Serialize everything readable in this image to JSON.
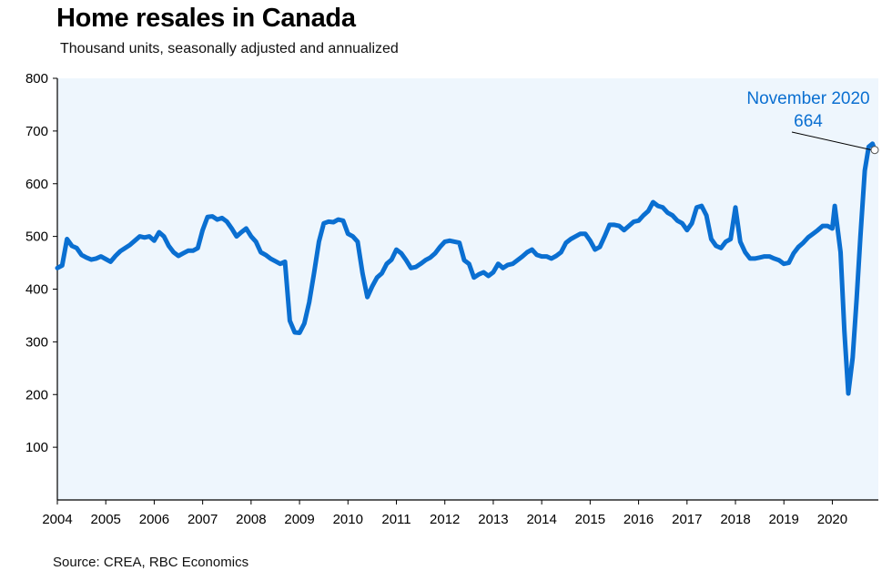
{
  "title": "Home resales in Canada",
  "subtitle": "Thousand units, seasonally adjusted and annualized",
  "source": "Source: CREA, RBC Economics",
  "colors": {
    "line": "#0a6fd1",
    "plot_bg": "#eef6fd",
    "annotation": "#0a6fd1"
  },
  "chart_data": {
    "type": "line",
    "title": "Home resales in Canada",
    "subtitle": "Thousand units, seasonally adjusted and annualized",
    "xlabel": "",
    "ylabel": "",
    "xlim": [
      2004,
      2020.95
    ],
    "ylim": [
      0,
      800
    ],
    "yticks": [
      "100",
      "200",
      "300",
      "400",
      "500",
      "600",
      "700",
      "800"
    ],
    "xticks": [
      "2004",
      "2005",
      "2006",
      "2007",
      "2008",
      "2009",
      "2010",
      "2011",
      "2012",
      "2013",
      "2014",
      "2015",
      "2016",
      "2017",
      "2018",
      "2019",
      "2020"
    ],
    "grid": false,
    "annotation": {
      "label": "November 2020",
      "value_label": "664",
      "x": 2020.875,
      "y": 664
    },
    "series": [
      {
        "points": [
          [
            2004.0,
            440
          ],
          [
            2004.1,
            445
          ],
          [
            2004.2,
            495
          ],
          [
            2004.3,
            482
          ],
          [
            2004.4,
            478
          ],
          [
            2004.5,
            465
          ],
          [
            2004.6,
            460
          ],
          [
            2004.7,
            456
          ],
          [
            2004.8,
            458
          ],
          [
            2004.9,
            462
          ],
          [
            2005.0,
            457
          ],
          [
            2005.1,
            452
          ],
          [
            2005.2,
            463
          ],
          [
            2005.3,
            472
          ],
          [
            2005.4,
            478
          ],
          [
            2005.5,
            484
          ],
          [
            2005.6,
            492
          ],
          [
            2005.7,
            500
          ],
          [
            2005.8,
            498
          ],
          [
            2005.9,
            500
          ],
          [
            2006.0,
            492
          ],
          [
            2006.1,
            508
          ],
          [
            2006.2,
            500
          ],
          [
            2006.3,
            482
          ],
          [
            2006.4,
            470
          ],
          [
            2006.5,
            463
          ],
          [
            2006.6,
            468
          ],
          [
            2006.7,
            473
          ],
          [
            2006.8,
            473
          ],
          [
            2006.9,
            478
          ],
          [
            2007.0,
            512
          ],
          [
            2007.1,
            537
          ],
          [
            2007.2,
            538
          ],
          [
            2007.3,
            532
          ],
          [
            2007.4,
            535
          ],
          [
            2007.5,
            528
          ],
          [
            2007.6,
            515
          ],
          [
            2007.7,
            500
          ],
          [
            2007.8,
            508
          ],
          [
            2007.9,
            515
          ],
          [
            2008.0,
            500
          ],
          [
            2008.1,
            490
          ],
          [
            2008.2,
            470
          ],
          [
            2008.3,
            465
          ],
          [
            2008.4,
            458
          ],
          [
            2008.5,
            453
          ],
          [
            2008.6,
            448
          ],
          [
            2008.7,
            452
          ],
          [
            2008.8,
            340
          ],
          [
            2008.9,
            318
          ],
          [
            2009.0,
            317
          ],
          [
            2009.1,
            335
          ],
          [
            2009.2,
            375
          ],
          [
            2009.3,
            430
          ],
          [
            2009.4,
            490
          ],
          [
            2009.5,
            525
          ],
          [
            2009.6,
            528
          ],
          [
            2009.7,
            527
          ],
          [
            2009.8,
            532
          ],
          [
            2009.9,
            530
          ],
          [
            2010.0,
            505
          ],
          [
            2010.1,
            500
          ],
          [
            2010.2,
            490
          ],
          [
            2010.3,
            430
          ],
          [
            2010.4,
            385
          ],
          [
            2010.5,
            405
          ],
          [
            2010.6,
            422
          ],
          [
            2010.7,
            430
          ],
          [
            2010.8,
            448
          ],
          [
            2010.9,
            456
          ],
          [
            2011.0,
            475
          ],
          [
            2011.1,
            468
          ],
          [
            2011.2,
            455
          ],
          [
            2011.3,
            440
          ],
          [
            2011.4,
            442
          ],
          [
            2011.5,
            448
          ],
          [
            2011.6,
            455
          ],
          [
            2011.7,
            460
          ],
          [
            2011.8,
            468
          ],
          [
            2011.9,
            480
          ],
          [
            2012.0,
            490
          ],
          [
            2012.1,
            492
          ],
          [
            2012.2,
            490
          ],
          [
            2012.3,
            488
          ],
          [
            2012.4,
            455
          ],
          [
            2012.5,
            448
          ],
          [
            2012.6,
            422
          ],
          [
            2012.7,
            428
          ],
          [
            2012.8,
            432
          ],
          [
            2012.9,
            425
          ],
          [
            2013.0,
            432
          ],
          [
            2013.1,
            448
          ],
          [
            2013.2,
            440
          ],
          [
            2013.3,
            446
          ],
          [
            2013.4,
            448
          ],
          [
            2013.5,
            455
          ],
          [
            2013.6,
            462
          ],
          [
            2013.7,
            470
          ],
          [
            2013.8,
            475
          ],
          [
            2013.9,
            465
          ],
          [
            2014.0,
            462
          ],
          [
            2014.1,
            462
          ],
          [
            2014.2,
            458
          ],
          [
            2014.3,
            463
          ],
          [
            2014.4,
            470
          ],
          [
            2014.5,
            488
          ],
          [
            2014.6,
            495
          ],
          [
            2014.7,
            500
          ],
          [
            2014.8,
            505
          ],
          [
            2014.9,
            505
          ],
          [
            2015.0,
            492
          ],
          [
            2015.1,
            475
          ],
          [
            2015.2,
            480
          ],
          [
            2015.3,
            500
          ],
          [
            2015.4,
            522
          ],
          [
            2015.5,
            522
          ],
          [
            2015.6,
            520
          ],
          [
            2015.7,
            512
          ],
          [
            2015.8,
            520
          ],
          [
            2015.9,
            528
          ],
          [
            2016.0,
            530
          ],
          [
            2016.1,
            540
          ],
          [
            2016.2,
            548
          ],
          [
            2016.3,
            565
          ],
          [
            2016.4,
            558
          ],
          [
            2016.5,
            555
          ],
          [
            2016.6,
            545
          ],
          [
            2016.7,
            540
          ],
          [
            2016.8,
            530
          ],
          [
            2016.9,
            525
          ],
          [
            2017.0,
            512
          ],
          [
            2017.1,
            525
          ],
          [
            2017.2,
            555
          ],
          [
            2017.3,
            558
          ],
          [
            2017.4,
            540
          ],
          [
            2017.5,
            495
          ],
          [
            2017.6,
            482
          ],
          [
            2017.7,
            478
          ],
          [
            2017.8,
            490
          ],
          [
            2017.9,
            495
          ],
          [
            2018.0,
            555
          ],
          [
            2018.1,
            490
          ],
          [
            2018.2,
            470
          ],
          [
            2018.3,
            458
          ],
          [
            2018.4,
            458
          ],
          [
            2018.5,
            460
          ],
          [
            2018.6,
            462
          ],
          [
            2018.7,
            462
          ],
          [
            2018.8,
            458
          ],
          [
            2018.9,
            455
          ],
          [
            2019.0,
            448
          ],
          [
            2019.1,
            450
          ],
          [
            2019.2,
            468
          ],
          [
            2019.3,
            480
          ],
          [
            2019.4,
            488
          ],
          [
            2019.5,
            498
          ],
          [
            2019.6,
            505
          ],
          [
            2019.7,
            512
          ],
          [
            2019.8,
            520
          ],
          [
            2019.9,
            520
          ],
          [
            2020.0,
            515
          ],
          [
            2020.05,
            558
          ],
          [
            2020.17,
            470
          ],
          [
            2020.25,
            320
          ],
          [
            2020.33,
            202
          ],
          [
            2020.42,
            270
          ],
          [
            2020.5,
            380
          ],
          [
            2020.58,
            500
          ],
          [
            2020.67,
            625
          ],
          [
            2020.75,
            670
          ],
          [
            2020.83,
            676
          ],
          [
            2020.875,
            664
          ]
        ]
      }
    ]
  }
}
